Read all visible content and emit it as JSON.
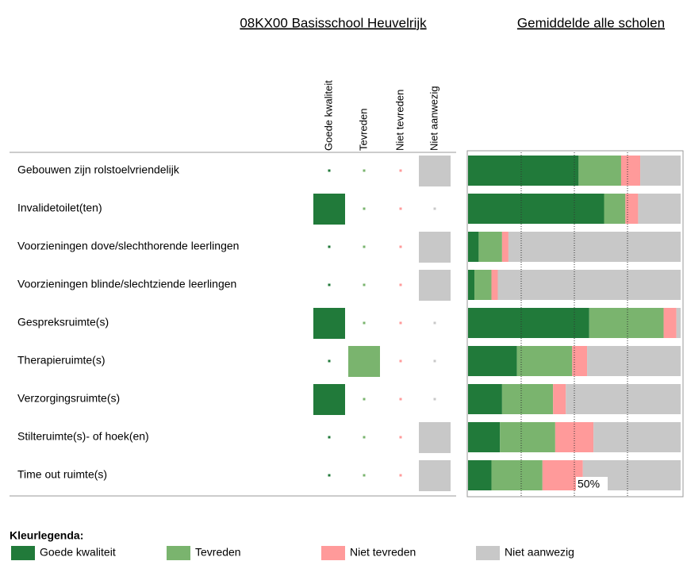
{
  "school": {
    "title": "08KX00 Basisschool Heuvelrijk",
    "columns": [
      "Goede kwaliteit",
      "Tevreden",
      "Niet tevreden",
      "Niet aanwezig"
    ],
    "selected": [
      3,
      0,
      3,
      3,
      0,
      1,
      0,
      3,
      3
    ]
  },
  "chart_data": {
    "type": "stacked-bar",
    "title": "Gemiddelde alle scholen",
    "categories": [
      "Gebouwen zijn rolstoelvriendelijk",
      "Invalidetoilet(ten)",
      "Voorzieningen dove/slechthorende leerlingen",
      "Voorzieningen blinde/slechtziende leerlingen",
      "Gespreksruimte(s)",
      "Therapieruimte(s)",
      "Verzorgingsruimte(s)",
      "Stilteruimte(s)- of hoek(en)",
      "Time out ruimte(s)"
    ],
    "series": [
      {
        "name": "Goede kwaliteit",
        "color": "#217a3a",
        "values": [
          52,
          64,
          5,
          3,
          57,
          23,
          16,
          15,
          11
        ]
      },
      {
        "name": "Tevreden",
        "color": "#7ab46e",
        "values": [
          20,
          10,
          11,
          8,
          35,
          26,
          24,
          26,
          24
        ]
      },
      {
        "name": "Niet tevreden",
        "color": "#ff9a9a",
        "values": [
          9,
          6,
          3,
          3,
          6,
          7,
          6,
          18,
          19
        ]
      },
      {
        "name": "Niet aanwezig",
        "color": "#c8c8c8",
        "values": [
          19,
          20,
          81,
          86,
          2,
          44,
          54,
          41,
          46
        ]
      }
    ],
    "xlim": [
      0,
      100
    ],
    "xticks": [
      {
        "value": 50,
        "label": "50%"
      }
    ],
    "xgrid": [
      25,
      50,
      75
    ],
    "legend_title": "Kleurlegenda:"
  }
}
